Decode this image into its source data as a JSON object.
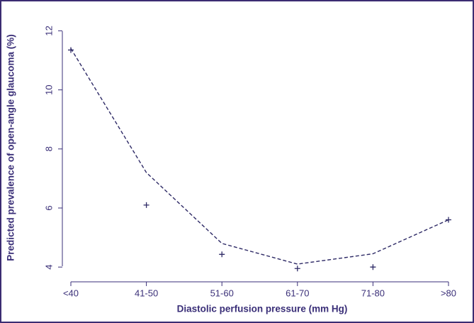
{
  "chart_data": {
    "type": "line",
    "xlabel": "Diastolic perfusion pressure (mm Hg)",
    "ylabel": "Predicted prevalence of open-angle glaucoma (%)",
    "categories": [
      "<40",
      "41-50",
      "51-60",
      "61-70",
      "71-80",
      ">80"
    ],
    "series": [
      {
        "color": "#2e2a66",
        "line_style": "dashed",
        "values": [
          11.4,
          7.2,
          4.8,
          4.1,
          4.45,
          5.6
        ]
      },
      {
        "color": "#2e2a66",
        "marker": "+",
        "values": [
          11.35,
          6.1,
          4.43,
          3.95,
          4.0,
          5.6
        ]
      }
    ],
    "ylim": [
      3.5,
      12.25
    ],
    "yticks": [
      4,
      6,
      8,
      10,
      12
    ],
    "grid": false
  }
}
